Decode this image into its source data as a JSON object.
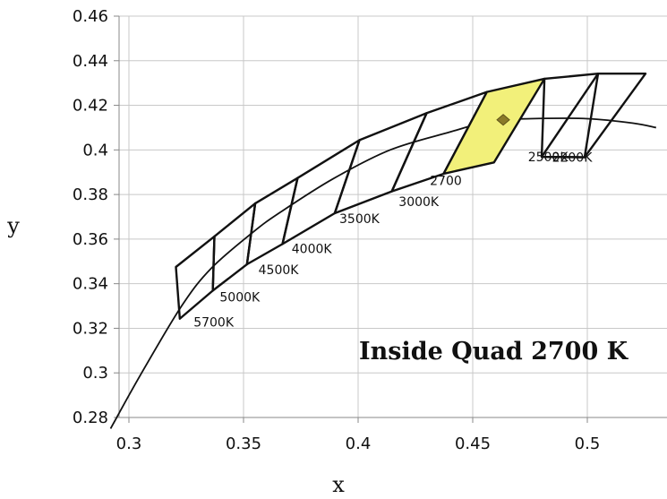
{
  "chart_data": {
    "type": "line",
    "title": "",
    "xlabel": "x",
    "ylabel": "y",
    "xlim": [
      0.3,
      0.53
    ],
    "ylim": [
      0.28,
      0.46
    ],
    "x_ticks": [
      "0.3",
      "0.35",
      "0.4",
      "0.45",
      "0.5"
    ],
    "y_ticks": [
      "0.28",
      "0.3",
      "0.32",
      "0.34",
      "0.36",
      "0.38",
      "0.4",
      "0.42",
      "0.44",
      "0.46"
    ],
    "grid": true,
    "annotation": "Inside Quad 2700 K",
    "highlight_color": "#f2f07a",
    "planckian_locus": {
      "x": [
        0.292,
        0.305,
        0.323,
        0.336,
        0.354,
        0.366,
        0.389,
        0.414,
        0.44,
        0.458,
        0.475,
        0.5,
        0.52,
        0.53
      ],
      "y": [
        0.275,
        0.299,
        0.33,
        0.347,
        0.363,
        0.372,
        0.387,
        0.4,
        0.408,
        0.413,
        0.414,
        0.414,
        0.412,
        0.41
      ]
    },
    "quadrangles": [
      {
        "cct": "5700K",
        "points": [
          [
            0.3205,
            0.3475
          ],
          [
            0.3373,
            0.3612
          ],
          [
            0.3366,
            0.3369
          ],
          [
            0.3222,
            0.3243
          ]
        ]
      },
      {
        "cct": "5000K",
        "points": [
          [
            0.3373,
            0.3612
          ],
          [
            0.3551,
            0.376
          ],
          [
            0.3515,
            0.3487
          ],
          [
            0.3366,
            0.3369
          ]
        ]
      },
      {
        "cct": "4500K",
        "points": [
          [
            0.3551,
            0.376
          ],
          [
            0.3736,
            0.3874
          ],
          [
            0.367,
            0.3578
          ],
          [
            0.3515,
            0.3487
          ]
        ]
      },
      {
        "cct": "4000K",
        "points": [
          [
            0.3736,
            0.3874
          ],
          [
            0.4006,
            0.4044
          ],
          [
            0.3898,
            0.3716
          ],
          [
            0.367,
            0.3578
          ]
        ]
      },
      {
        "cct": "3500K",
        "points": [
          [
            0.4006,
            0.4044
          ],
          [
            0.4299,
            0.4165
          ],
          [
            0.4147,
            0.3814
          ],
          [
            0.3898,
            0.3716
          ]
        ]
      },
      {
        "cct": "3000K",
        "points": [
          [
            0.4299,
            0.4165
          ],
          [
            0.4562,
            0.426
          ],
          [
            0.4373,
            0.3893
          ],
          [
            0.4147,
            0.3814
          ]
        ]
      },
      {
        "cct": "2700",
        "points": [
          [
            0.4562,
            0.426
          ],
          [
            0.4813,
            0.4319
          ],
          [
            0.4593,
            0.3944
          ],
          [
            0.4373,
            0.3893
          ]
        ],
        "highlighted": true
      },
      {
        "cct": "2500K",
        "points": [
          [
            0.4813,
            0.4319
          ],
          [
            0.5047,
            0.4342
          ],
          [
            0.4988,
            0.3967
          ],
          [
            0.4801,
            0.3969
          ]
        ]
      },
      {
        "cct": "2200K",
        "points": [
          [
            0.5047,
            0.4342
          ],
          [
            0.5254,
            0.4342
          ],
          [
            0.4988,
            0.3967
          ],
          [
            0.4801,
            0.3969
          ]
        ]
      }
    ],
    "test_point": {
      "x": 0.4633,
      "y": 0.4135
    }
  }
}
